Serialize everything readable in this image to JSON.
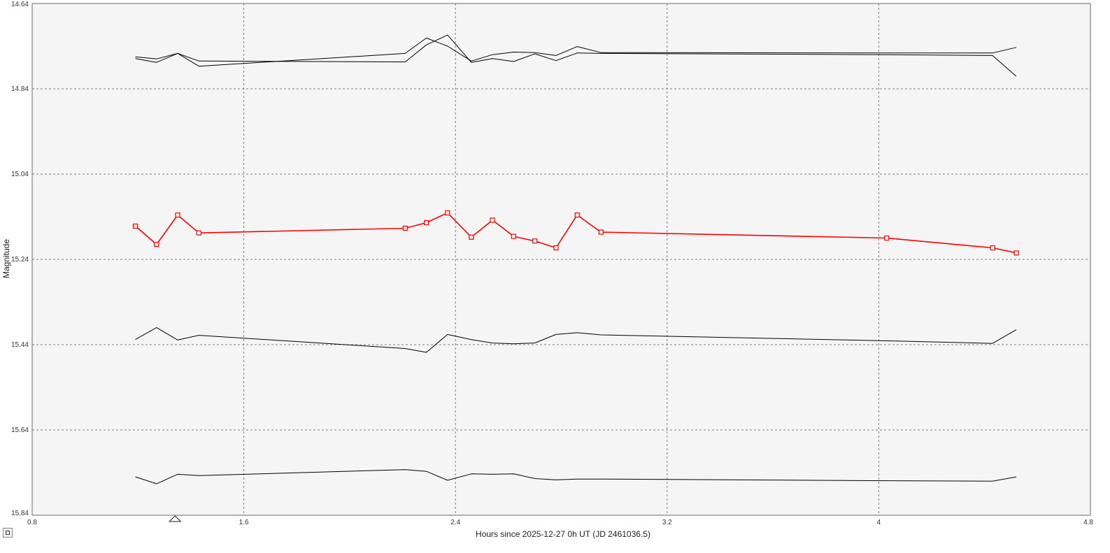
{
  "chart_data": {
    "type": "line",
    "xlabel": "Hours since 2025-12-27 0h UT (JD 2461036.5)",
    "ylabel": "Magnitude",
    "xlim": [
      0.8,
      4.8
    ],
    "ylim": [
      14.64,
      15.84
    ],
    "y_inverted": true,
    "x_ticks": [
      "0.8",
      "1.6",
      "2.4",
      "3.2",
      "4",
      "4.8"
    ],
    "y_ticks": [
      "14.64",
      "14.84",
      "15.04",
      "15.24",
      "15.44",
      "15.64",
      "15.84"
    ],
    "grid": true,
    "marker_x": 1.34,
    "target_color": "#ff0000",
    "comparison_color": "#000000",
    "series": [
      {
        "role": "target",
        "color": "#ff0000",
        "markers": true,
        "x": [
          1.19,
          1.27,
          1.35,
          1.43,
          2.21,
          2.29,
          2.37,
          2.46,
          2.54,
          2.62,
          2.7,
          2.78,
          2.86,
          2.95,
          4.03,
          4.43,
          4.52
        ],
        "y": [
          15.162,
          15.205,
          15.136,
          15.178,
          15.167,
          15.154,
          15.131,
          15.188,
          15.148,
          15.186,
          15.197,
          15.213,
          15.136,
          15.176,
          15.19,
          15.213,
          15.225
        ]
      },
      {
        "role": "comparison",
        "color": "#000000",
        "markers": false,
        "x": [
          1.19,
          1.27,
          1.35,
          1.43,
          2.21,
          2.29,
          2.37,
          2.46,
          2.54,
          2.62,
          2.7,
          2.78,
          2.86,
          2.95,
          4.03,
          4.43,
          4.52
        ],
        "y": [
          14.765,
          14.77,
          14.757,
          14.787,
          14.757,
          14.721,
          14.74,
          14.775,
          14.76,
          14.754,
          14.755,
          14.762,
          14.741,
          14.755,
          14.756,
          14.756,
          14.743
        ]
      },
      {
        "role": "comparison",
        "color": "#000000",
        "markers": false,
        "x": [
          1.19,
          1.27,
          1.35,
          1.43,
          2.21,
          2.29,
          2.37,
          2.46,
          2.54,
          2.62,
          2.7,
          2.78,
          2.86,
          2.95,
          4.03,
          4.43,
          4.52
        ],
        "y": [
          14.769,
          14.778,
          14.757,
          14.775,
          14.777,
          14.737,
          14.714,
          14.778,
          14.769,
          14.776,
          14.758,
          14.774,
          14.756,
          14.757,
          14.76,
          14.762,
          14.811
        ]
      },
      {
        "role": "comparison",
        "color": "#000000",
        "markers": false,
        "x": [
          1.19,
          1.27,
          1.35,
          1.43,
          2.21,
          2.29,
          2.37,
          2.46,
          2.54,
          2.62,
          2.7,
          2.78,
          2.86,
          2.95,
          4.03,
          4.43,
          4.52
        ],
        "y": [
          15.428,
          15.4,
          15.429,
          15.418,
          15.449,
          15.458,
          15.416,
          15.428,
          15.436,
          15.438,
          15.436,
          15.416,
          15.412,
          15.417,
          15.431,
          15.437,
          15.405
        ]
      },
      {
        "role": "comparison",
        "color": "#000000",
        "markers": false,
        "x": [
          1.19,
          1.27,
          1.35,
          1.43,
          2.21,
          2.29,
          2.37,
          2.46,
          2.54,
          2.62,
          2.7,
          2.78,
          2.86,
          2.95,
          4.03,
          4.43,
          4.52
        ],
        "y": [
          15.75,
          15.766,
          15.744,
          15.747,
          15.733,
          15.737,
          15.758,
          15.743,
          15.744,
          15.743,
          15.754,
          15.757,
          15.755,
          15.755,
          15.759,
          15.76,
          15.75
        ]
      }
    ]
  }
}
